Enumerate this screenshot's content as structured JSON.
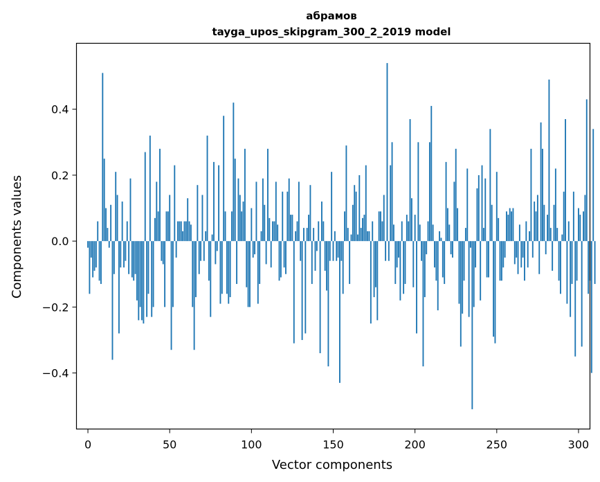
{
  "chart_data": {
    "type": "bar",
    "title": "абрамов",
    "subtitle": "tayga_upos_skipgram_300_2_2019 model",
    "xlabel": "Vector components",
    "ylabel": "Components values",
    "xlim": [
      -7,
      307
    ],
    "ylim": [
      -0.57,
      0.6
    ],
    "x_ticks": [
      0,
      50,
      100,
      150,
      200,
      250,
      300
    ],
    "x_tick_labels": [
      "0",
      "50",
      "100",
      "150",
      "200",
      "250",
      "300"
    ],
    "y_ticks": [
      -0.4,
      -0.2,
      0.0,
      0.2,
      0.4
    ],
    "y_tick_labels": [
      "−0.4",
      "−0.2",
      "0.0",
      "0.2",
      "0.4"
    ],
    "bar_color": "#1f77b4",
    "grid": false,
    "values": [
      -0.02,
      -0.16,
      -0.05,
      -0.11,
      -0.09,
      -0.08,
      0.06,
      -0.12,
      -0.13,
      0.51,
      0.25,
      0.1,
      0.04,
      -0.02,
      0.11,
      -0.36,
      -0.1,
      0.21,
      0.14,
      -0.28,
      -0.08,
      0.12,
      -0.08,
      -0.06,
      0.06,
      -0.1,
      0.19,
      -0.11,
      -0.12,
      -0.1,
      -0.18,
      -0.24,
      -0.2,
      -0.24,
      -0.25,
      0.27,
      -0.23,
      -0.16,
      0.32,
      -0.23,
      -0.2,
      0.07,
      0.18,
      0.09,
      0.28,
      -0.06,
      -0.07,
      -0.2,
      0.09,
      0.09,
      0.14,
      -0.33,
      -0.2,
      0.23,
      -0.05,
      0.06,
      0.06,
      0.06,
      0.03,
      0.06,
      0.06,
      0.13,
      0.06,
      0.05,
      -0.2,
      -0.33,
      -0.17,
      0.17,
      -0.1,
      -0.06,
      0.14,
      -0.06,
      0.03,
      0.32,
      -0.12,
      -0.23,
      0.02,
      0.24,
      -0.07,
      -0.03,
      0.23,
      -0.19,
      -0.16,
      0.38,
      0.09,
      -0.16,
      -0.19,
      -0.17,
      0.09,
      0.42,
      0.25,
      -0.13,
      0.19,
      0.14,
      0.09,
      0.12,
      0.28,
      -0.14,
      -0.2,
      -0.2,
      0.1,
      -0.05,
      -0.04,
      0.18,
      -0.19,
      -0.13,
      0.03,
      0.19,
      0.11,
      -0.07,
      0.28,
      0.07,
      -0.08,
      0.06,
      0.06,
      0.18,
      0.05,
      -0.12,
      -0.11,
      0.15,
      -0.08,
      -0.1,
      0.15,
      0.19,
      0.08,
      0.08,
      -0.31,
      0.03,
      0.06,
      0.18,
      -0.06,
      -0.3,
      0.04,
      -0.28,
      0.04,
      0.08,
      0.17,
      -0.13,
      0.04,
      -0.09,
      -0.03,
      0.06,
      -0.34,
      0.12,
      0.06,
      -0.09,
      -0.15,
      -0.38,
      -0.06,
      0.21,
      -0.06,
      0.03,
      -0.06,
      -0.05,
      -0.43,
      -0.06,
      -0.16,
      0.09,
      0.29,
      0.04,
      -0.13,
      0.02,
      0.11,
      0.17,
      0.15,
      0.02,
      0.2,
      0.04,
      0.07,
      0.08,
      0.23,
      0.03,
      0.03,
      -0.25,
      0.06,
      -0.17,
      -0.14,
      -0.24,
      0.09,
      0.09,
      0.06,
      0.14,
      -0.06,
      0.54,
      -0.06,
      0.23,
      0.3,
      0.05,
      -0.13,
      -0.08,
      -0.05,
      -0.18,
      0.06,
      -0.16,
      -0.13,
      0.08,
      0.06,
      0.37,
      0.13,
      -0.14,
      0.08,
      -0.28,
      0.3,
      0.05,
      -0.06,
      -0.38,
      -0.17,
      -0.04,
      0.06,
      0.3,
      0.41,
      0.05,
      -0.08,
      -0.12,
      -0.21,
      0.03,
      0.01,
      -0.11,
      -0.13,
      0.24,
      0.1,
      0.05,
      -0.04,
      -0.05,
      0.18,
      0.28,
      0.1,
      -0.19,
      -0.32,
      -0.22,
      -0.12,
      0.04,
      0.22,
      -0.23,
      -0.02,
      -0.51,
      -0.2,
      -0.08,
      0.16,
      0.2,
      -0.18,
      0.23,
      0.04,
      0.19,
      -0.11,
      -0.11,
      0.34,
      0.11,
      -0.29,
      -0.31,
      0.21,
      0.07,
      -0.12,
      -0.12,
      -0.08,
      -0.05,
      0.09,
      0.08,
      0.1,
      0.09,
      0.1,
      -0.07,
      -0.05,
      -0.1,
      0.05,
      -0.08,
      -0.05,
      -0.12,
      0.06,
      -0.08,
      0.03,
      0.28,
      -0.05,
      0.12,
      0.09,
      0.14,
      -0.1,
      0.36,
      0.28,
      0.11,
      -0.04,
      0.08,
      0.49,
      0.04,
      -0.09,
      0.11,
      0.22,
      0.04,
      -0.12,
      -0.16,
      0.02,
      0.15,
      0.37,
      -0.19,
      0.06,
      -0.23,
      -0.13,
      0.15,
      -0.35,
      -0.12,
      0.1,
      0.08,
      -0.32,
      0.09,
      0.14,
      0.43,
      -0.16,
      -0.12,
      -0.4,
      0.34,
      -0.13
    ]
  }
}
